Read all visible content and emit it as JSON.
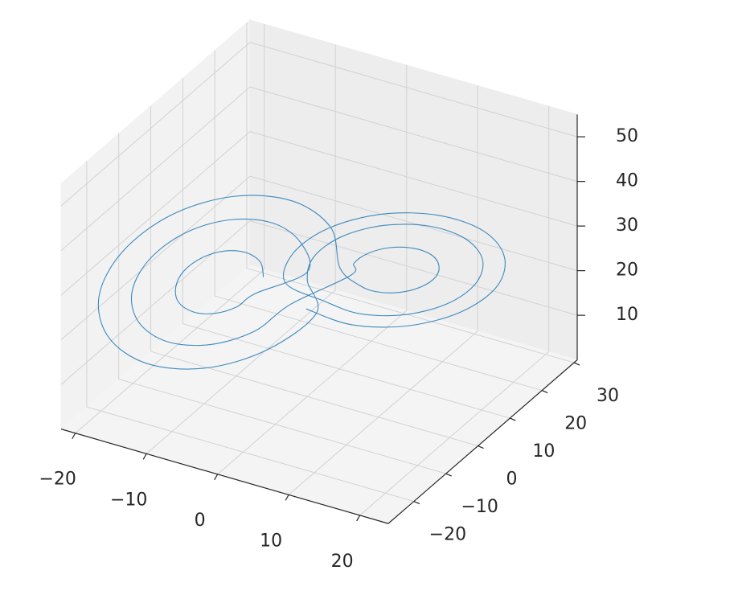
{
  "chart_data": {
    "type": "line3d",
    "color": "#1f77b4",
    "grid": true,
    "x": [
      -4.5,
      -5.0,
      -6.5,
      -8.5,
      -10.5,
      -12.0,
      -12.5,
      -12.0,
      -10.5,
      -8.5,
      -6.5,
      -5.0,
      -0.5,
      -1.6,
      -4.5,
      -8.5,
      -12.5,
      -15.4,
      -16.5,
      -15.4,
      -12.5,
      -8.5,
      -4.5,
      -1.6,
      4.5,
      5.0,
      6.5,
      8.5,
      10.5,
      12.0,
      12.5,
      12.0,
      10.5,
      8.5,
      6.5,
      5.0,
      2.5,
      1.0,
      -3.0,
      -8.5,
      -14.0,
      -18.0,
      -19.5,
      -18.0,
      -14.0,
      -8.5,
      -3.0,
      1.0,
      0.5,
      1.6,
      4.5,
      8.5,
      12.5,
      15.4,
      16.5,
      15.4,
      12.5,
      8.5,
      4.5,
      1.6,
      -1.5,
      -0.2,
      3.5,
      8.5,
      13.5,
      17.2,
      18.5,
      17.2,
      13.5,
      8.5,
      3.5,
      -0.2
    ],
    "y": [
      -3.7,
      -3.5,
      -4.7,
      -6.9,
      -9.5,
      -11.9,
      -13.3,
      -13.5,
      -12.3,
      -10.1,
      -7.5,
      -5.2,
      1.1,
      1.4,
      -0.9,
      -5.3,
      -10.5,
      -15.2,
      -18.1,
      -18.4,
      -16.1,
      -11.7,
      -6.5,
      -1.8,
      3.7,
      3.5,
      4.7,
      6.9,
      9.5,
      11.9,
      13.3,
      13.5,
      12.3,
      10.1,
      7.5,
      5.2,
      4.7,
      5.1,
      1.9,
      -4.1,
      -11.3,
      -17.7,
      -21.7,
      -22.1,
      -18.9,
      -12.9,
      -5.7,
      0.7,
      -1.1,
      -1.4,
      0.9,
      5.3,
      10.5,
      15.2,
      18.1,
      18.4,
      16.1,
      11.7,
      6.5,
      1.8,
      -3.5,
      -3.9,
      -1.0,
      4.5,
      11.0,
      16.9,
      20.5,
      20.9,
      18.0,
      12.5,
      6.0,
      0.1
    ],
    "z": [
      27,
      30,
      32.2,
      33,
      32.2,
      30,
      27,
      24,
      21.8,
      21,
      21.8,
      24,
      27,
      33,
      37.4,
      39,
      37.4,
      33,
      27,
      21,
      16.6,
      15,
      16.6,
      21,
      27,
      30,
      32.2,
      33,
      32.2,
      30,
      27,
      24,
      21.8,
      21,
      21.8,
      24,
      27,
      35.2,
      41.3,
      43.5,
      41.3,
      35.2,
      27,
      18.8,
      12.7,
      10.5,
      12.7,
      18.8,
      27,
      33,
      37.4,
      39,
      37.4,
      33,
      27,
      21,
      16.6,
      15,
      16.6,
      21,
      27,
      34.5,
      40,
      42,
      40,
      34.5,
      27,
      19.5,
      14,
      12,
      14,
      19.5
    ],
    "xlim": [
      -22,
      24
    ],
    "ylim": [
      -28,
      31
    ],
    "zlim": [
      0,
      55
    ],
    "xticks": [
      {
        "value": -20,
        "label": "−20"
      },
      {
        "value": -10,
        "label": "−10"
      },
      0,
      10,
      20
    ],
    "yticks": [
      {
        "value": -20,
        "label": "−20"
      },
      {
        "value": -10,
        "label": "−10"
      },
      0,
      10,
      20,
      30
    ],
    "zticks": [
      10,
      20,
      30,
      40,
      50
    ]
  }
}
